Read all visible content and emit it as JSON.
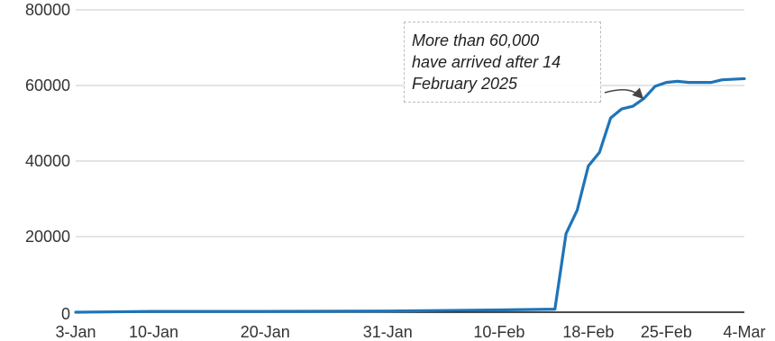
{
  "colors": {
    "series": "#1f74b7",
    "grid": "#c8c8c8",
    "axis": "#111111",
    "arrow": "#444444"
  },
  "annotation": {
    "text": "More than 60,000\nhave arrived after 14\nFebruary 2025"
  },
  "chart_data": {
    "type": "line",
    "title": "",
    "xlabel": "",
    "ylabel": "",
    "x_tick_labels": [
      "3-Jan",
      "10-Jan",
      "20-Jan",
      "31-Jan",
      "10-Feb",
      "18-Feb",
      "25-Feb",
      "4-Mar"
    ],
    "y_tick_labels": [
      "0",
      "20000",
      "40000",
      "60000",
      "80000"
    ],
    "ylim": [
      0,
      80000
    ],
    "x_range": [
      "2025-01-03",
      "2025-03-04"
    ],
    "grid": true,
    "series": [
      {
        "values": [
          {
            "x": "2025-01-03",
            "y": 0
          },
          {
            "x": "2025-01-10",
            "y": 200
          },
          {
            "x": "2025-01-20",
            "y": 200
          },
          {
            "x": "2025-01-31",
            "y": 300
          },
          {
            "x": "2025-02-10",
            "y": 600
          },
          {
            "x": "2025-02-15",
            "y": 800
          },
          {
            "x": "2025-02-16",
            "y": 20800
          },
          {
            "x": "2025-02-17",
            "y": 27000
          },
          {
            "x": "2025-02-18",
            "y": 38700
          },
          {
            "x": "2025-02-19",
            "y": 42300
          },
          {
            "x": "2025-02-20",
            "y": 51400
          },
          {
            "x": "2025-02-21",
            "y": 53800
          },
          {
            "x": "2025-02-22",
            "y": 54500
          },
          {
            "x": "2025-02-23",
            "y": 56600
          },
          {
            "x": "2025-02-24",
            "y": 59800
          },
          {
            "x": "2025-02-25",
            "y": 60800
          },
          {
            "x": "2025-02-26",
            "y": 61100
          },
          {
            "x": "2025-02-27",
            "y": 60800
          },
          {
            "x": "2025-03-01",
            "y": 60800
          },
          {
            "x": "2025-03-02",
            "y": 61500
          },
          {
            "x": "2025-03-04",
            "y": 61800
          }
        ]
      }
    ]
  }
}
